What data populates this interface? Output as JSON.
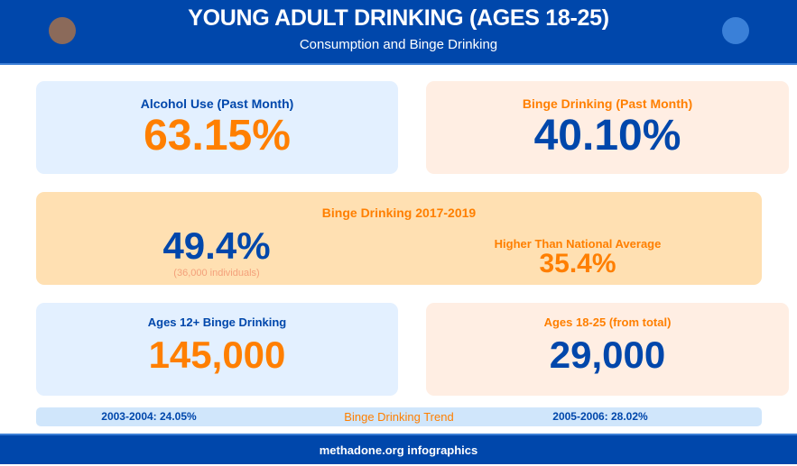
{
  "header": {
    "title": "YOUNG ADULT DRINKING (AGES 18-25)",
    "subtitle": "Consumption and Binge Drinking",
    "colors": {
      "left_dot": "#8B6A5A",
      "right_dot": "#3A80D8"
    }
  },
  "cards": {
    "alcohol_use": {
      "label": "Alcohol Use (Past Month)",
      "value": "63.15%"
    },
    "binge_past_month": {
      "label": "Binge Drinking (Past Month)",
      "value": "40.10%"
    },
    "binge_2017": {
      "label": "Binge Drinking 2017-2019",
      "value": "49.4%",
      "note": "(36,000 individuals)",
      "compare_label": "Higher Than National Average",
      "compare_value": "35.4%"
    },
    "ages12": {
      "label": "Ages 12+ Binge Drinking",
      "value": "145,000"
    },
    "ages18": {
      "label": "Ages 18-25 (from total)",
      "value": "29,000"
    }
  },
  "trend": {
    "left": "2003-2004: 24.05%",
    "title": "Binge Drinking Trend",
    "right": "2005-2006: 28.02%"
  },
  "footer": {
    "text": "methadone.org infographics"
  },
  "colors": {
    "blue": "#0047AB",
    "orange": "#FF7F00"
  }
}
